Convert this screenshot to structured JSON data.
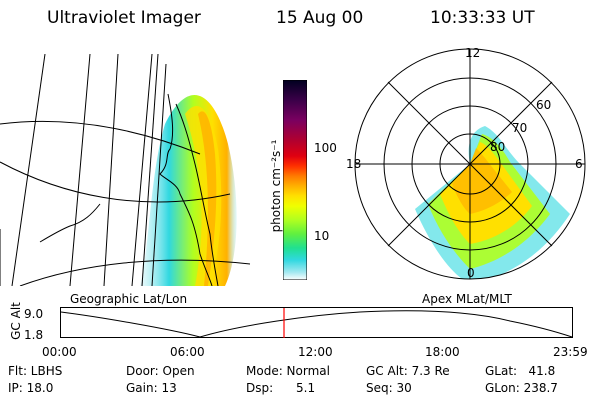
{
  "header": {
    "instrument": "Ultraviolet Imager",
    "date": "15 Aug 00",
    "time": "10:33:33 UT"
  },
  "colorbar": {
    "label": "photon cm⁻²s⁻¹",
    "ticks": [
      "100",
      "10"
    ],
    "colors": [
      "#000020",
      "#3a0048",
      "#7a0060",
      "#b00030",
      "#e00010",
      "#ff3000",
      "#ff7a00",
      "#ffb000",
      "#ffe000",
      "#f0ff00",
      "#b0ff20",
      "#60f040",
      "#20e090",
      "#30d8e0",
      "#a0e8f0",
      "#ffffff"
    ]
  },
  "polar_plot": {
    "mlt_labels": {
      "top": "12",
      "left": "18",
      "right": "6",
      "bottom": "0"
    },
    "lat_labels": [
      "60",
      "70",
      "80"
    ]
  },
  "map_captions": {
    "left": "Geographic Lat/Lon",
    "right": "Apex MLat/MLT"
  },
  "altitude_plot": {
    "ylabel": "GC Alt",
    "yticks": [
      "9.0",
      "1.8"
    ],
    "xticks": [
      "00:00",
      "06:00",
      "12:00",
      "18:00",
      "23:59"
    ],
    "marker_time": "10:33:33",
    "marker_color": "#ff0000"
  },
  "info": {
    "flt": "Flt: LBHS",
    "ip": "IP: 18.0",
    "door": "Door: Open",
    "gain": "Gain: 13",
    "mode": "Mode: Normal",
    "dsp": "Dsp:      5.1",
    "gcalt": "GC Alt: 7.3 Re",
    "seq": "Seq: 30",
    "glat": "GLat:   41.8",
    "glon": "GLon: 238.7"
  }
}
